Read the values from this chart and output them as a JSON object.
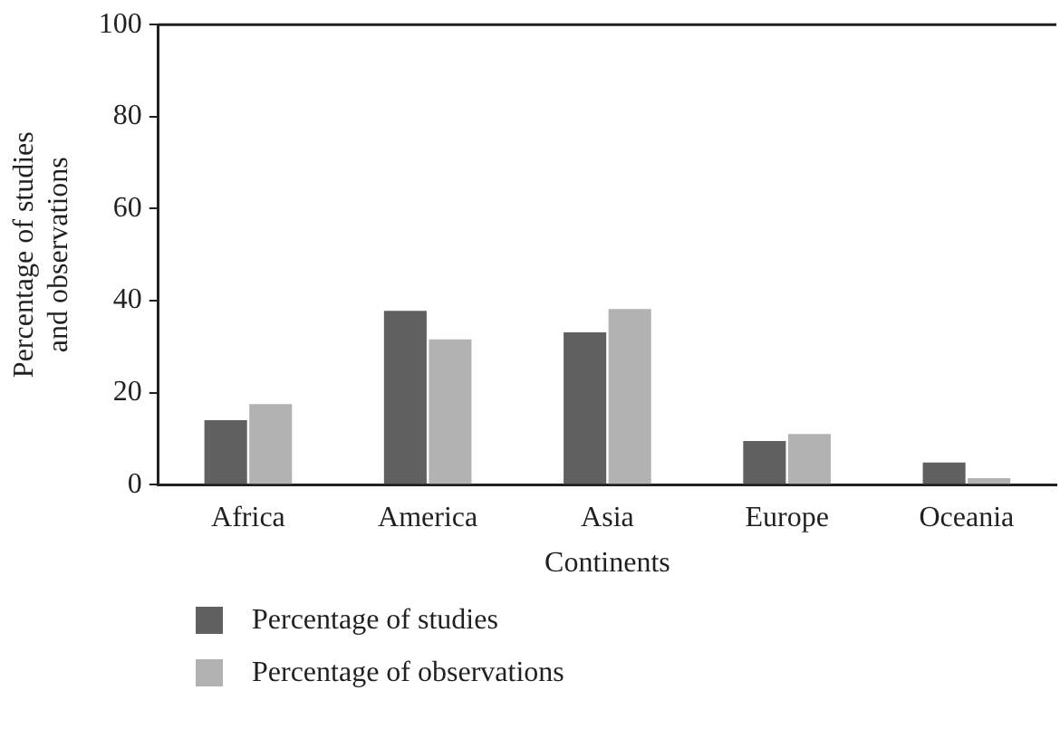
{
  "chart_data": {
    "type": "bar",
    "xlabel": "Continents",
    "ylabel": "Percentage of studies\nand observations",
    "categories": [
      "Africa",
      "America",
      "Asia",
      "Europe",
      "Oceania"
    ],
    "series": [
      {
        "name": "Percentage of studies",
        "color": "#5f605f",
        "values": [
          14.0,
          37.8,
          33.1,
          9.5,
          4.8
        ]
      },
      {
        "name": "Percentage of observations",
        "color": "#b1b2b1",
        "values": [
          17.5,
          31.6,
          38.2,
          11.0,
          1.4
        ]
      }
    ],
    "ylim": [
      0,
      100
    ],
    "yticks": [
      0,
      20,
      40,
      60,
      80,
      100
    ],
    "grid": false,
    "legend": "bottom"
  }
}
